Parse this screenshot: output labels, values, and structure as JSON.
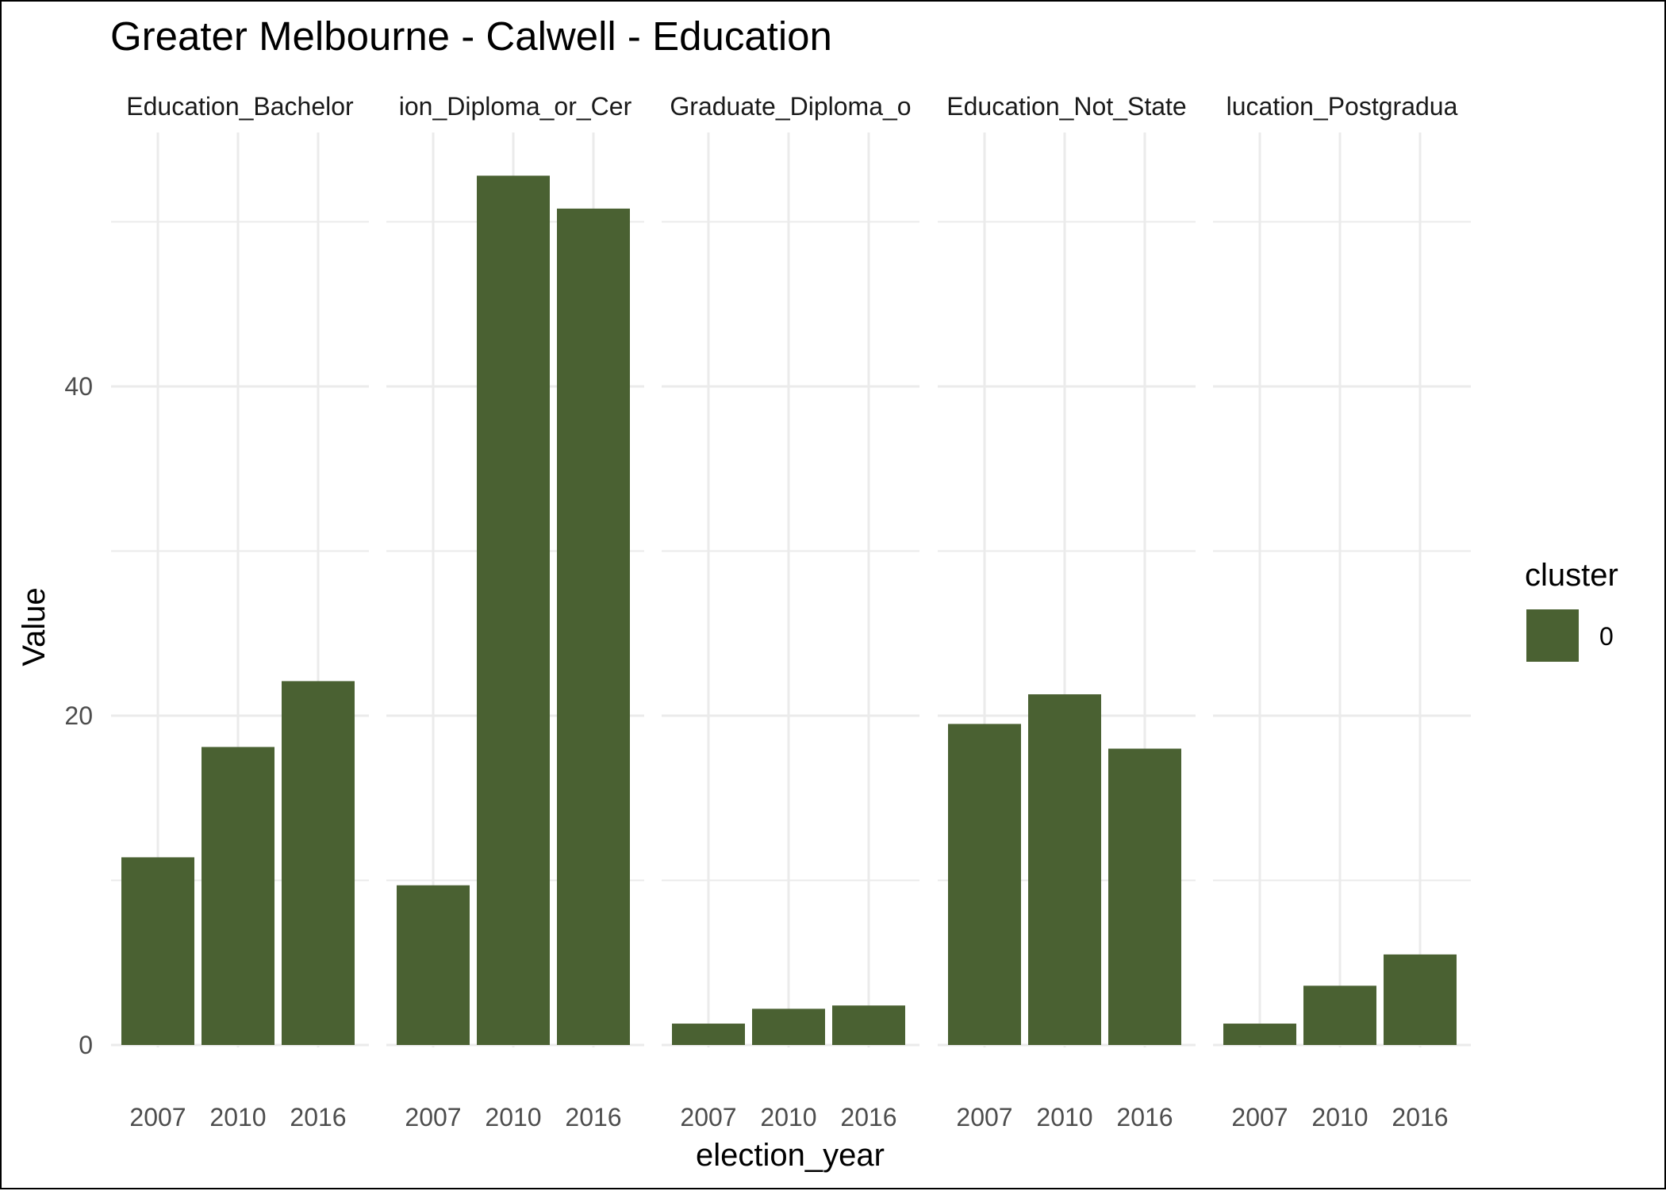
{
  "chart_data": {
    "type": "bar",
    "title": "Greater Melbourne - Calwell - Education",
    "xlabel": "election_year",
    "ylabel": "Value",
    "categories": [
      "2007",
      "2010",
      "2016"
    ],
    "ylim": [
      0,
      56
    ],
    "yticks": [
      0,
      20,
      40
    ],
    "grid": true,
    "facets": [
      {
        "label": "Education_Bachelor",
        "values": [
          11.4,
          18.1,
          22.1
        ]
      },
      {
        "label": "ion_Diploma_or_Cer",
        "values": [
          9.7,
          52.8,
          50.8
        ]
      },
      {
        "label": "Graduate_Diploma_o",
        "values": [
          1.3,
          2.2,
          2.4
        ]
      },
      {
        "label": "Education_Not_State",
        "values": [
          19.5,
          21.3,
          18.0
        ]
      },
      {
        "label": "lucation_Postgradua",
        "values": [
          1.3,
          3.6,
          5.5
        ]
      }
    ],
    "legend": {
      "title": "cluster",
      "position": "right",
      "entries": [
        {
          "label": "0",
          "color": "#4a6132"
        }
      ]
    },
    "bar_color": "#4a6132"
  }
}
